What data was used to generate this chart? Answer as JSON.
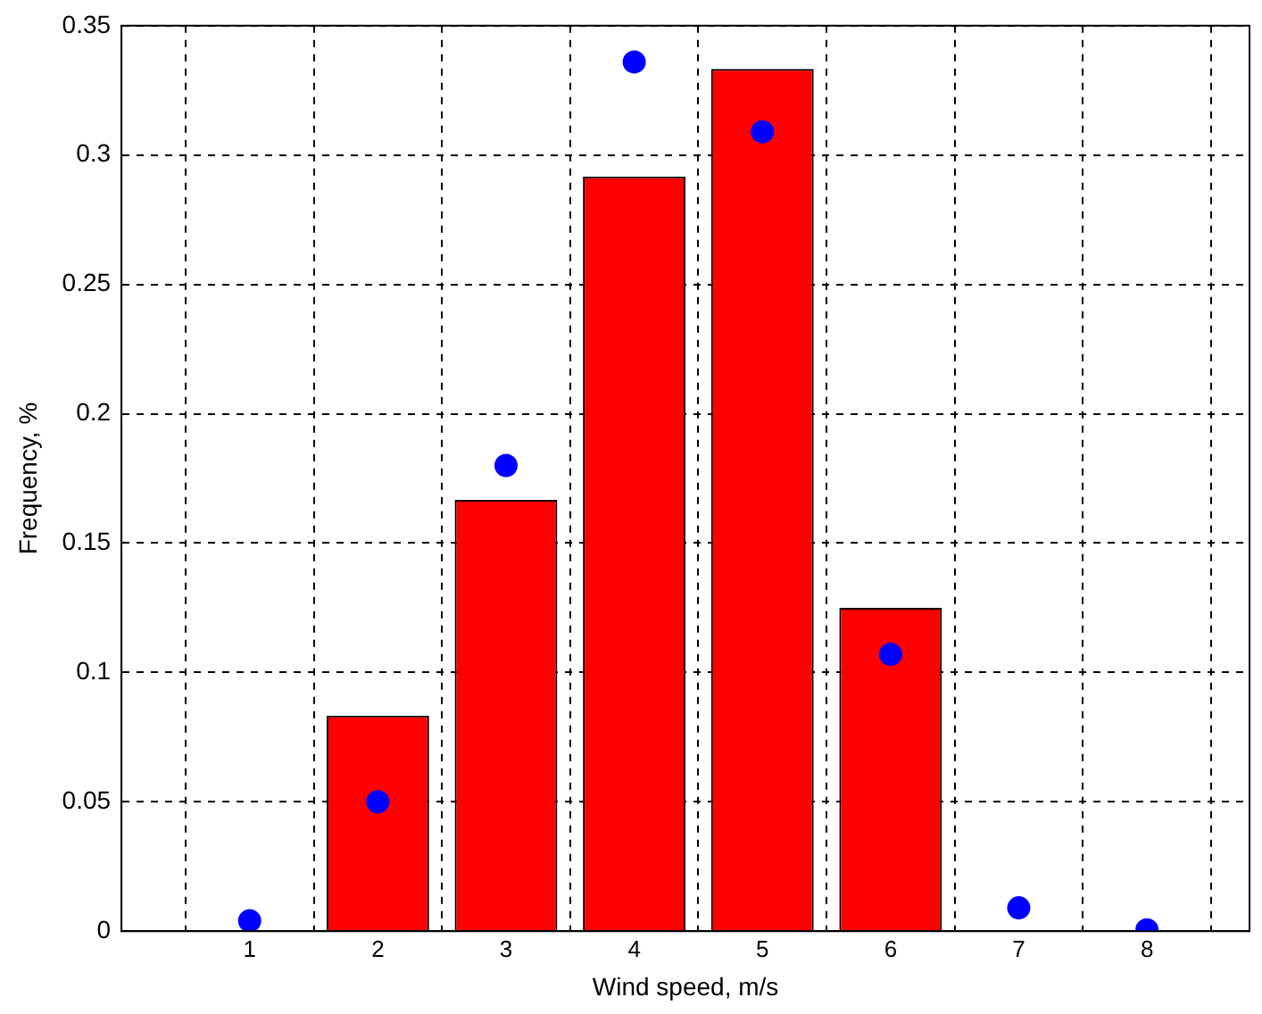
{
  "chart_data": {
    "type": "bar",
    "xlabel": "Wind speed, m/s",
    "ylabel": "Frequency, %",
    "x": [
      2,
      3,
      4,
      5,
      6
    ],
    "series": [
      {
        "color": "#ff0000",
        "values": [
          0.0833,
          0.1667,
          0.2917,
          0.3333,
          0.125
        ]
      },
      {
        "type": "scatter",
        "color": "#0000ff",
        "x": [
          1,
          2,
          3,
          4,
          5,
          6,
          7,
          8
        ],
        "values": [
          0.004,
          0.05,
          0.18,
          0.336,
          0.309,
          0.107,
          0.009,
          0.0005
        ]
      }
    ],
    "xlim": [
      0,
      8.8
    ],
    "xticks": [
      1,
      2,
      3,
      4,
      5,
      6,
      7,
      8
    ],
    "ylim": [
      0,
      0.35
    ],
    "yticks": [
      0,
      0.05,
      0.1,
      0.15,
      0.2,
      0.25,
      0.3,
      0.35
    ],
    "grid": true,
    "legend": false,
    "marker": "circle"
  }
}
